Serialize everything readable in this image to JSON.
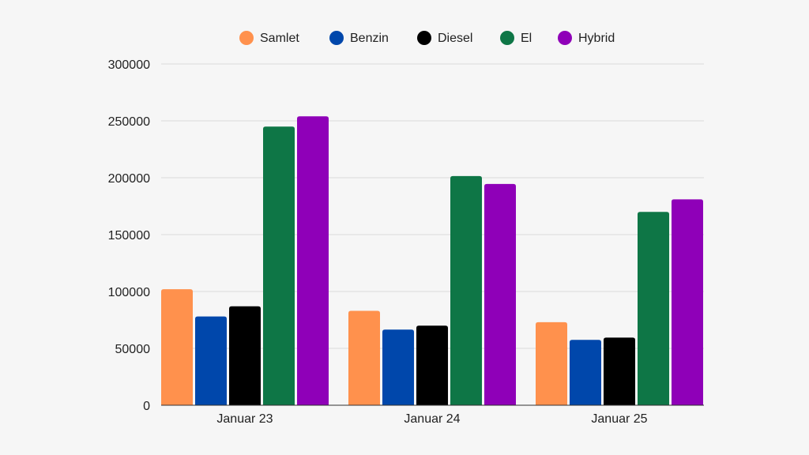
{
  "chart_data": {
    "type": "bar",
    "categories": [
      "Januar 23",
      "Januar 24",
      "Januar 25"
    ],
    "series": [
      {
        "name": "Samlet",
        "color": "#FF914D",
        "values": [
          102000,
          83000,
          73000
        ]
      },
      {
        "name": "Benzin",
        "color": "#0047AB",
        "values": [
          78000,
          66500,
          57500
        ]
      },
      {
        "name": "Diesel",
        "color": "#000000",
        "values": [
          87000,
          70000,
          59500
        ]
      },
      {
        "name": "El",
        "color": "#0E7646",
        "values": [
          245000,
          201500,
          170000
        ]
      },
      {
        "name": "Hybrid",
        "color": "#8F00B8",
        "values": [
          254000,
          194500,
          181000
        ]
      }
    ],
    "ylim": [
      0,
      300000
    ],
    "yticks": [
      "0",
      "50000",
      "100000",
      "150000",
      "200000",
      "250000",
      "300000"
    ],
    "grid": true,
    "legend_position": "top-center",
    "title": "",
    "xlabel": "",
    "ylabel": ""
  }
}
